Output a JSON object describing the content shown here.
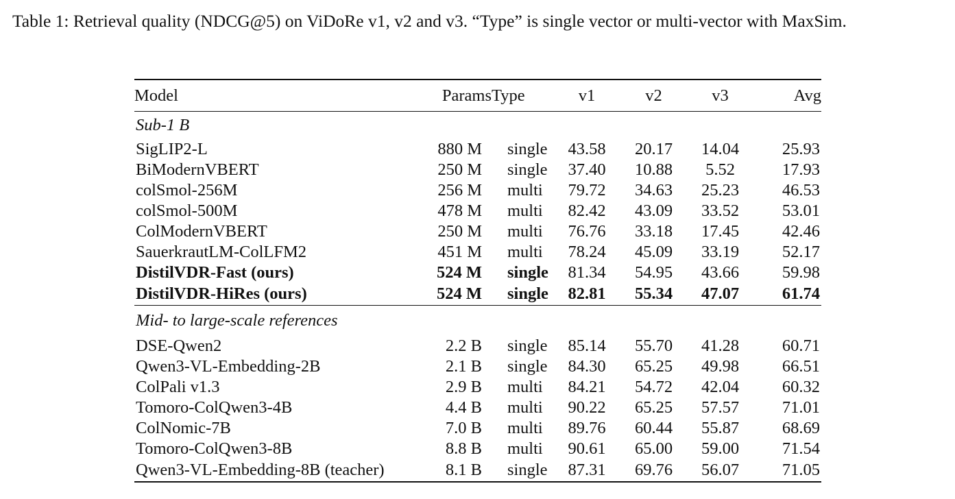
{
  "caption": "Table 1: Retrieval quality (NDCG@5) on ViDoRe v1, v2 and v3. “Type” is single vector or multi-vector with MaxSim.",
  "table": {
    "headers": [
      "Model",
      "Params",
      "Type",
      "v1",
      "v2",
      "v3",
      "Avg"
    ],
    "groups": [
      {
        "title": "Sub-1 B",
        "rows": [
          {
            "model": "SigLIP2-L",
            "params": "880 M",
            "type": "single",
            "v1": "43.58",
            "v2": "20.17",
            "v3": "14.04",
            "avg": "25.93",
            "bold": []
          },
          {
            "model": "BiModernVBERT",
            "params": "250 M",
            "type": "single",
            "v1": "37.40",
            "v2": "10.88",
            "v3": "5.52",
            "avg": "17.93",
            "bold": []
          },
          {
            "model": "colSmol-256M",
            "params": "256 M",
            "type": "multi",
            "v1": "79.72",
            "v2": "34.63",
            "v3": "25.23",
            "avg": "46.53",
            "bold": []
          },
          {
            "model": "colSmol-500M",
            "params": "478 M",
            "type": "multi",
            "v1": "82.42",
            "v2": "43.09",
            "v3": "33.52",
            "avg": "53.01",
            "bold": []
          },
          {
            "model": "ColModernVBERT",
            "params": "250 M",
            "type": "multi",
            "v1": "76.76",
            "v2": "33.18",
            "v3": "17.45",
            "avg": "42.46",
            "bold": []
          },
          {
            "model": "SauerkrautLM-ColLFM2",
            "params": "451 M",
            "type": "multi",
            "v1": "78.24",
            "v2": "45.09",
            "v3": "33.19",
            "avg": "52.17",
            "bold": []
          },
          {
            "model": "DistilVDR-Fast (ours)",
            "params": "524 M",
            "type": "single",
            "v1": "81.34",
            "v2": "54.95",
            "v3": "43.66",
            "avg": "59.98",
            "bold": [
              "model",
              "params",
              "type"
            ]
          },
          {
            "model": "DistilVDR-HiRes (ours)",
            "params": "524 M",
            "type": "single",
            "v1": "82.81",
            "v2": "55.34",
            "v3": "47.07",
            "avg": "61.74",
            "bold": [
              "model",
              "params",
              "type",
              "v1",
              "v2",
              "v3",
              "avg"
            ]
          }
        ]
      },
      {
        "title": "Mid- to large-scale references",
        "rows": [
          {
            "model": "DSE-Qwen2",
            "params": "2.2 B",
            "type": "single",
            "v1": "85.14",
            "v2": "55.70",
            "v3": "41.28",
            "avg": "60.71",
            "bold": []
          },
          {
            "model": "Qwen3-VL-Embedding-2B",
            "params": "2.1 B",
            "type": "single",
            "v1": "84.30",
            "v2": "65.25",
            "v3": "49.98",
            "avg": "66.51",
            "bold": []
          },
          {
            "model": "ColPali v1.3",
            "params": "2.9 B",
            "type": "multi",
            "v1": "84.21",
            "v2": "54.72",
            "v3": "42.04",
            "avg": "60.32",
            "bold": []
          },
          {
            "model": "Tomoro-ColQwen3-4B",
            "params": "4.4 B",
            "type": "multi",
            "v1": "90.22",
            "v2": "65.25",
            "v3": "57.57",
            "avg": "71.01",
            "bold": []
          },
          {
            "model": "ColNomic-7B",
            "params": "7.0 B",
            "type": "multi",
            "v1": "89.76",
            "v2": "60.44",
            "v3": "55.87",
            "avg": "68.69",
            "bold": []
          },
          {
            "model": "Tomoro-ColQwen3-8B",
            "params": "8.8 B",
            "type": "multi",
            "v1": "90.61",
            "v2": "65.00",
            "v3": "59.00",
            "avg": "71.54",
            "bold": []
          },
          {
            "model": "Qwen3-VL-Embedding-8B (teacher)",
            "params": "8.1 B",
            "type": "single",
            "v1": "87.31",
            "v2": "69.76",
            "v3": "56.07",
            "avg": "71.05",
            "bold": []
          }
        ]
      }
    ]
  }
}
